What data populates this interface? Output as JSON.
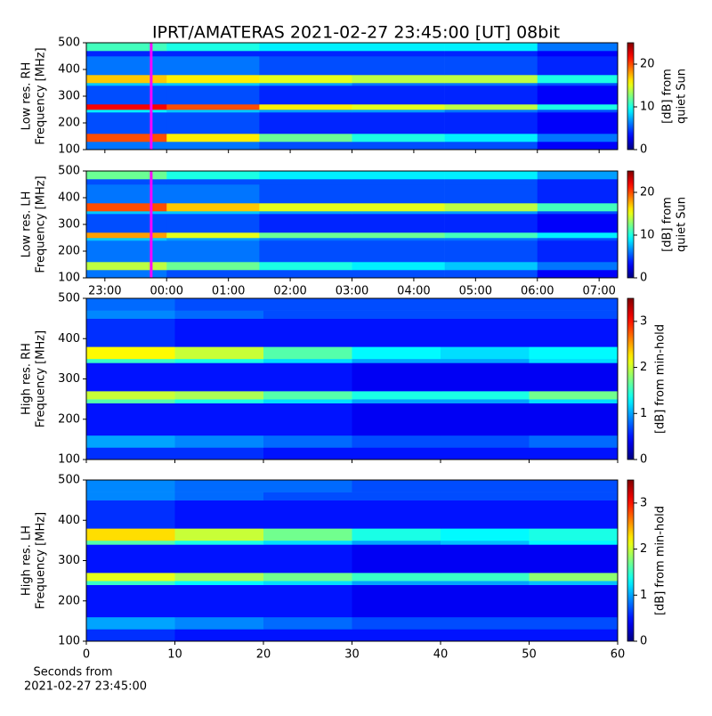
{
  "chart_data": [
    {
      "type": "heatmap",
      "title": "IPRT/AMATERAS 2021-02-27 23:45:00 [UT]   08bit",
      "ylabel": [
        "Low res. RH",
        "Frequency [MHz]"
      ],
      "cmap": "jet",
      "x_bins": [
        22.7,
        24,
        25.5,
        27,
        28.5,
        30,
        31.3
      ],
      "y_bins": [
        100,
        130,
        160,
        240,
        250,
        270,
        340,
        350,
        380,
        450,
        470,
        500
      ],
      "z": [
        [
          6,
          6,
          5,
          5,
          5,
          3
        ],
        [
          20,
          16,
          12,
          10,
          9,
          6
        ],
        [
          5,
          5,
          4,
          4,
          4,
          3
        ],
        [
          9,
          8,
          7,
          7,
          6,
          5
        ],
        [
          22,
          20,
          16,
          15,
          14,
          10
        ],
        [
          5,
          5,
          4,
          4,
          4,
          3
        ],
        [
          8,
          8,
          7,
          6,
          6,
          5
        ],
        [
          17,
          16,
          15,
          14,
          14,
          10
        ],
        [
          6,
          6,
          5,
          5,
          5,
          4
        ],
        [
          4,
          4,
          4,
          4,
          4,
          3
        ],
        [
          11,
          10,
          9,
          9,
          9,
          6
        ]
      ],
      "xlim": [
        22.7,
        31.3
      ],
      "xticks": [
        {
          "value": 23,
          "label": "23:00"
        },
        {
          "value": 24,
          "label": "00:00"
        },
        {
          "value": 25,
          "label": "01:00"
        },
        {
          "value": 26,
          "label": "02:00"
        },
        {
          "value": 27,
          "label": "03:00"
        },
        {
          "value": 28,
          "label": "04:00"
        },
        {
          "value": 29,
          "label": "05:00"
        },
        {
          "value": 30,
          "label": "06:00"
        },
        {
          "value": 31,
          "label": "07:00"
        }
      ],
      "show_xticklabels": false,
      "ylim": [
        100,
        500
      ],
      "yticks": [
        100,
        200,
        300,
        400,
        500
      ],
      "vline": {
        "x": 23.75,
        "color": "#ff00ff"
      },
      "clim": [
        0,
        25
      ],
      "cticks": [
        0,
        10,
        20
      ],
      "colorbar_label": [
        "[dB] from",
        "quiet Sun"
      ]
    },
    {
      "type": "heatmap",
      "ylabel": [
        "Low res. LH",
        "Frequency [MHz]"
      ],
      "cmap": "jet",
      "x_bins": [
        22.7,
        24,
        25.5,
        27,
        28.5,
        30,
        31.3
      ],
      "y_bins": [
        100,
        130,
        160,
        240,
        250,
        270,
        340,
        350,
        380,
        450,
        470,
        500
      ],
      "z": [
        [
          6,
          5,
          5,
          5,
          5,
          3
        ],
        [
          14,
          12,
          10,
          9,
          8,
          6
        ],
        [
          6,
          6,
          5,
          5,
          5,
          4
        ],
        [
          8,
          7,
          6,
          6,
          6,
          5
        ],
        [
          18,
          15,
          12,
          12,
          11,
          9
        ],
        [
          5,
          5,
          4,
          4,
          4,
          3
        ],
        [
          8,
          8,
          7,
          7,
          7,
          5
        ],
        [
          20,
          17,
          15,
          15,
          14,
          11
        ],
        [
          6,
          6,
          5,
          5,
          5,
          4
        ],
        [
          5,
          5,
          5,
          5,
          5,
          4
        ],
        [
          12,
          10,
          9,
          9,
          9,
          7
        ]
      ],
      "xlim": [
        22.7,
        31.3
      ],
      "xticks": [
        {
          "value": 23,
          "label": "23:00"
        },
        {
          "value": 24,
          "label": "00:00"
        },
        {
          "value": 25,
          "label": "01:00"
        },
        {
          "value": 26,
          "label": "02:00"
        },
        {
          "value": 27,
          "label": "03:00"
        },
        {
          "value": 28,
          "label": "04:00"
        },
        {
          "value": 29,
          "label": "05:00"
        },
        {
          "value": 30,
          "label": "06:00"
        },
        {
          "value": 31,
          "label": "07:00"
        }
      ],
      "show_xticklabels": true,
      "ylim": [
        100,
        500
      ],
      "yticks": [
        100,
        200,
        300,
        400,
        500
      ],
      "vline": {
        "x": 23.75,
        "color": "#ff00ff"
      },
      "clim": [
        0,
        25
      ],
      "cticks": [
        0,
        10,
        20
      ],
      "colorbar_label": [
        "[dB] from",
        "quiet Sun"
      ]
    },
    {
      "type": "heatmap",
      "ylabel": [
        "High res. RH",
        "Frequency [MHz]"
      ],
      "cmap": "jet",
      "x_bins": [
        0,
        10,
        20,
        30,
        40,
        50,
        60
      ],
      "y_bins": [
        100,
        130,
        160,
        240,
        250,
        270,
        340,
        350,
        380,
        450,
        470,
        500
      ],
      "z": [
        [
          0.6,
          0.6,
          0.5,
          0.5,
          0.5,
          0.5
        ],
        [
          1.0,
          0.9,
          0.8,
          0.7,
          0.7,
          0.8
        ],
        [
          0.5,
          0.5,
          0.5,
          0.4,
          0.4,
          0.4
        ],
        [
          1.6,
          1.4,
          1.2,
          1.0,
          1.0,
          1.2
        ],
        [
          2.0,
          1.9,
          1.6,
          1.4,
          1.4,
          1.7
        ],
        [
          0.5,
          0.5,
          0.5,
          0.4,
          0.4,
          0.4
        ],
        [
          1.5,
          1.4,
          1.2,
          1.0,
          1.0,
          1.2
        ],
        [
          2.2,
          2.0,
          1.6,
          1.3,
          1.2,
          1.3
        ],
        [
          0.6,
          0.5,
          0.5,
          0.5,
          0.5,
          0.5
        ],
        [
          0.9,
          0.8,
          0.7,
          0.7,
          0.7,
          0.7
        ],
        [
          0.8,
          0.7,
          0.7,
          0.7,
          0.7,
          0.7
        ]
      ],
      "xlim": [
        0,
        60
      ],
      "xticks": [
        0,
        10,
        20,
        30,
        40,
        50,
        60
      ],
      "show_xticklabels": false,
      "ylim": [
        100,
        500
      ],
      "yticks": [
        100,
        200,
        300,
        400,
        500
      ],
      "clim": [
        0,
        3.5
      ],
      "cticks": [
        0,
        1,
        2,
        3
      ],
      "colorbar_label": [
        "[dB] from min-hold"
      ]
    },
    {
      "type": "heatmap",
      "ylabel": [
        "High res. LH",
        "Frequency [MHz]"
      ],
      "cmap": "jet",
      "x_bins": [
        0,
        10,
        20,
        30,
        40,
        50,
        60
      ],
      "y_bins": [
        100,
        130,
        160,
        240,
        250,
        270,
        340,
        350,
        380,
        450,
        470,
        500
      ],
      "z": [
        [
          0.6,
          0.5,
          0.5,
          0.5,
          0.5,
          0.5
        ],
        [
          1.0,
          0.9,
          0.8,
          0.7,
          0.7,
          0.7
        ],
        [
          0.5,
          0.5,
          0.5,
          0.4,
          0.4,
          0.4
        ],
        [
          1.5,
          1.3,
          1.2,
          1.0,
          1.0,
          1.1
        ],
        [
          2.1,
          1.9,
          1.7,
          1.5,
          1.5,
          1.8
        ],
        [
          0.5,
          0.5,
          0.5,
          0.4,
          0.4,
          0.4
        ],
        [
          1.6,
          1.4,
          1.2,
          1.0,
          1.1,
          1.3
        ],
        [
          2.3,
          2.0,
          1.7,
          1.4,
          1.3,
          1.4
        ],
        [
          0.6,
          0.5,
          0.5,
          0.5,
          0.5,
          0.5
        ],
        [
          0.9,
          0.8,
          0.7,
          0.7,
          0.7,
          0.7
        ],
        [
          0.9,
          0.8,
          0.8,
          0.7,
          0.7,
          0.7
        ]
      ],
      "xlim": [
        0,
        60
      ],
      "xticks": [
        0,
        10,
        20,
        30,
        40,
        50,
        60
      ],
      "show_xticklabels": true,
      "xlabel": [
        "Seconds from",
        "2021-02-27 23:45:00"
      ],
      "ylim": [
        100,
        500
      ],
      "yticks": [
        100,
        200,
        300,
        400,
        500
      ],
      "clim": [
        0,
        3.5
      ],
      "cticks": [
        0,
        1,
        2,
        3
      ],
      "colorbar_label": [
        "[dB] from min-hold"
      ]
    }
  ]
}
